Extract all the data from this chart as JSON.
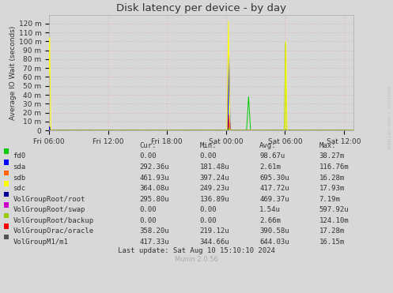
{
  "title": "Disk latency per device - by day",
  "ylabel": "Average IO Wait (seconds)",
  "background_color": "#d8d8d8",
  "plot_bg_color": "#d8d8d8",
  "x_tick_labels": [
    "Fri 06:00",
    "Fri 12:00",
    "Fri 18:00",
    "Sat 00:00",
    "Sat 06:00",
    "Sat 12:00"
  ],
  "ytick_labels": [
    "0",
    "10 m",
    "20 m",
    "30 m",
    "40 m",
    "50 m",
    "60 m",
    "70 m",
    "80 m",
    "90 m",
    "100 m",
    "110 m",
    "120 m"
  ],
  "ytick_values": [
    0,
    0.01,
    0.02,
    0.03,
    0.04,
    0.05,
    0.06,
    0.07,
    0.08,
    0.09,
    0.1,
    0.11,
    0.12
  ],
  "ylim": [
    0,
    0.13
  ],
  "series": [
    {
      "name": "fd0",
      "color": "#00cc00"
    },
    {
      "name": "sda",
      "color": "#0000ff"
    },
    {
      "name": "sdb",
      "color": "#ff6600"
    },
    {
      "name": "sdc",
      "color": "#ffff00"
    },
    {
      "name": "VolGroupRoot/root",
      "color": "#000099"
    },
    {
      "name": "VolGroupRoot/swap",
      "color": "#cc00cc"
    },
    {
      "name": "VolGroupRoot/backup",
      "color": "#99cc00"
    },
    {
      "name": "VolGroupOrac/oracle",
      "color": "#ff0000"
    },
    {
      "name": "VolGroupM1/m1",
      "color": "#555555"
    }
  ],
  "table_data": [
    [
      "fd0",
      "0.00",
      "0.00",
      "98.67u",
      "38.27m"
    ],
    [
      "sda",
      "292.36u",
      "181.48u",
      "2.61m",
      "116.76m"
    ],
    [
      "sdb",
      "461.93u",
      "397.24u",
      "695.30u",
      "16.28m"
    ],
    [
      "sdc",
      "364.08u",
      "249.23u",
      "417.72u",
      "17.93m"
    ],
    [
      "VolGroupRoot/root",
      "295.80u",
      "136.89u",
      "469.37u",
      "7.19m"
    ],
    [
      "VolGroupRoot/swap",
      "0.00",
      "0.00",
      "1.54u",
      "597.92u"
    ],
    [
      "VolGroupRoot/backup",
      "0.00",
      "0.00",
      "2.66m",
      "124.10m"
    ],
    [
      "VolGroupOrac/oracle",
      "358.20u",
      "219.12u",
      "390.58u",
      "17.28m"
    ],
    [
      "VolGroupM1/m1",
      "417.33u",
      "344.66u",
      "644.03u",
      "16.15m"
    ]
  ],
  "footer": "Last update: Sat Aug 10 15:10:10 2024",
  "munin_version": "Munin 2.0.56",
  "watermark": "RRDTOOL / TOBI OETIKER"
}
